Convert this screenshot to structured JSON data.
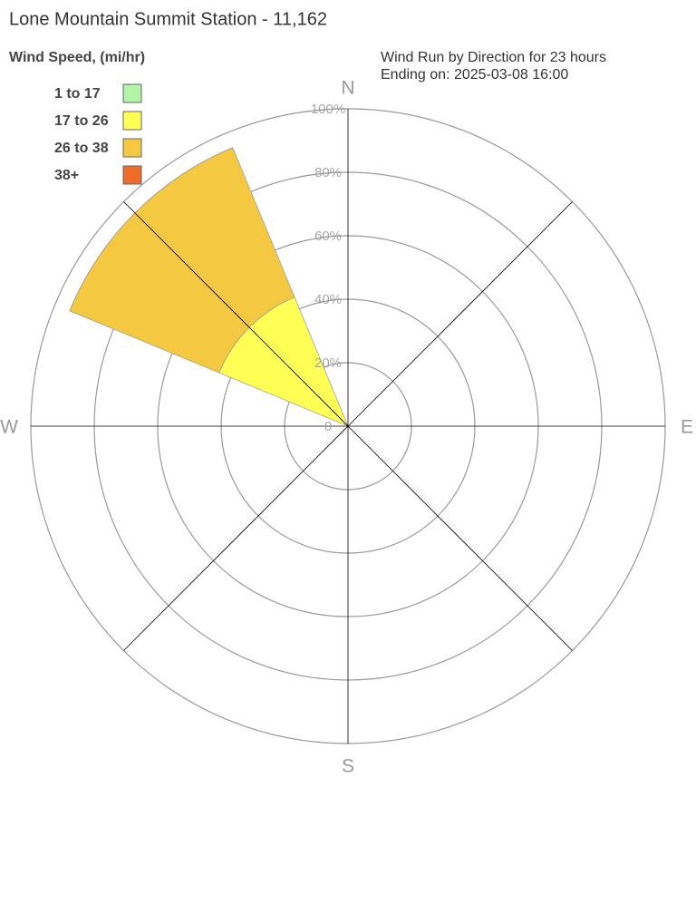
{
  "chart_data": {
    "type": "windrose",
    "title": "Lone Mountain Summit Station - 11,162",
    "legend_title": "Wind Speed, (mi/hr)",
    "subtitle": [
      "Wind Run by Direction for 23 hours",
      "Ending on: 2025-03-08 16:00"
    ],
    "categories": [
      "N",
      null,
      "E",
      null,
      "S",
      null,
      "W",
      null
    ],
    "series": [
      {
        "name": "1 to 17",
        "color": "#b3f5a6",
        "values": [
          0,
          0,
          0,
          0,
          0,
          0,
          0,
          0
        ]
      },
      {
        "name": "17 to 26",
        "color": "#ffff55",
        "values": [
          0,
          0,
          0,
          0,
          0,
          0,
          0,
          44
        ]
      },
      {
        "name": "26 to 38",
        "color": "#f5c842",
        "values": [
          0,
          0,
          0,
          0,
          0,
          0,
          0,
          51
        ]
      },
      {
        "name": "38+",
        "color": "#ee6c2a",
        "values": [
          0,
          0,
          0,
          0,
          0,
          0,
          0,
          0
        ]
      }
    ],
    "ylim": [
      0,
      100
    ],
    "yticks": [
      0,
      {
        "value": 20,
        "label": "20%"
      },
      {
        "value": 40,
        "label": "40%"
      },
      {
        "value": 60,
        "label": "60%"
      },
      {
        "value": 80,
        "label": "80%"
      },
      {
        "value": 100,
        "label": "100%"
      }
    ],
    "grid": true
  }
}
